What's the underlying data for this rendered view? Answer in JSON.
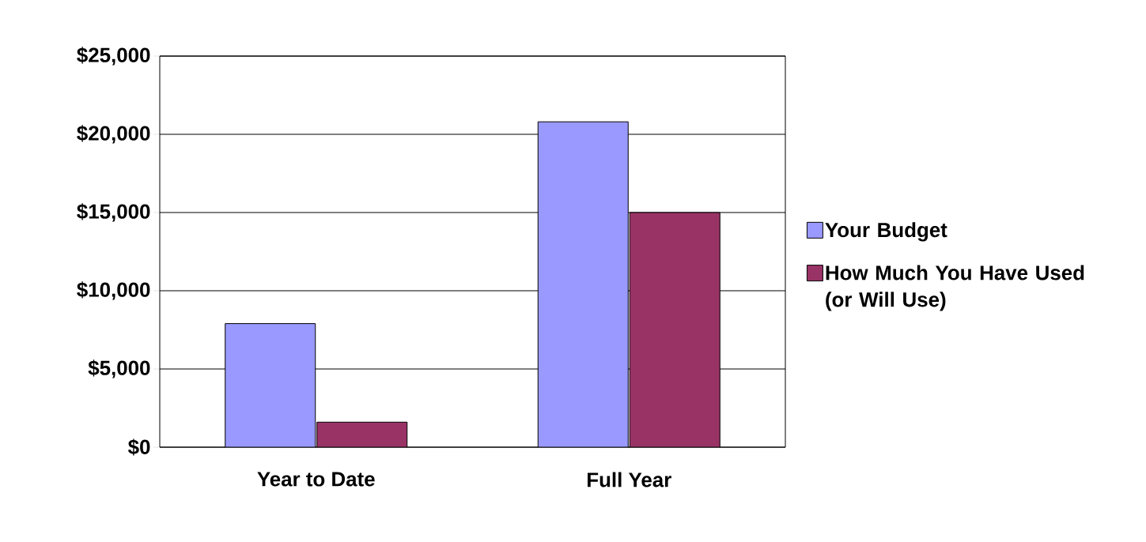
{
  "chart_data": {
    "type": "bar",
    "categories": [
      "Year to Date",
      "Full Year"
    ],
    "series": [
      {
        "name": "Your Budget",
        "color": "#9999ff",
        "values": [
          7900,
          20800
        ]
      },
      {
        "name": "How Much You Have Used (or Will Use)",
        "color": "#993366",
        "values": [
          1600,
          15000
        ]
      }
    ],
    "ylim": [
      0,
      25000
    ],
    "yticks": [
      {
        "value": 0,
        "label": "$0"
      },
      {
        "value": 5000,
        "label": "$5,000"
      },
      {
        "value": 10000,
        "label": "$10,000"
      },
      {
        "value": 15000,
        "label": "$15,000"
      },
      {
        "value": 20000,
        "label": "$20,000"
      },
      {
        "value": 25000,
        "label": "$25,000"
      }
    ],
    "grid": "y",
    "legend": "right"
  }
}
